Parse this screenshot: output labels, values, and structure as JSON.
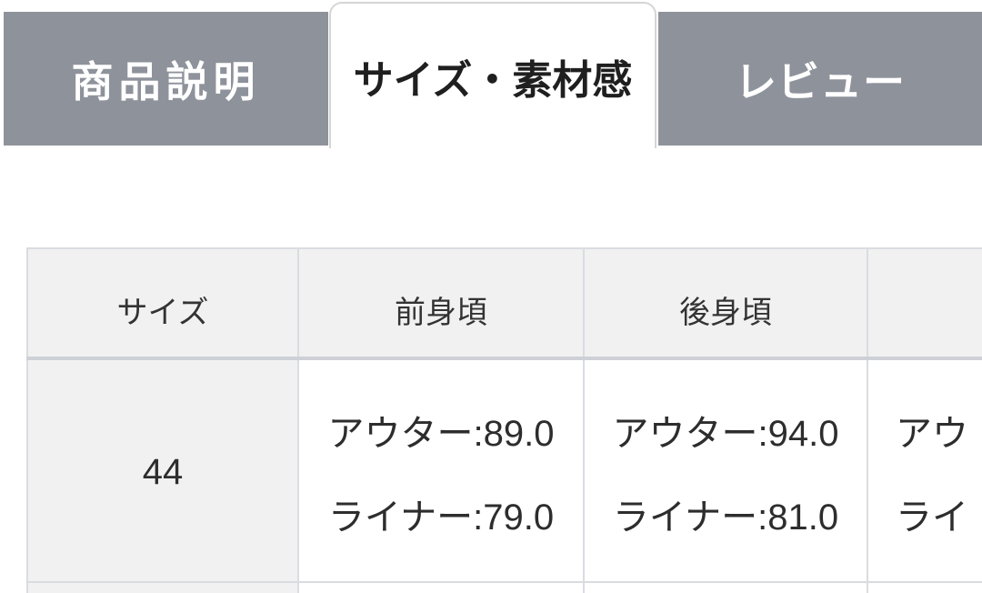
{
  "tabs": [
    {
      "label": "商品説明",
      "active": false
    },
    {
      "label": "サイズ・素材感",
      "active": true
    },
    {
      "label": "レビュー",
      "active": false
    }
  ],
  "size_table": {
    "headers": {
      "size": "サイズ",
      "front": "前身頃",
      "back": "後身頃",
      "clipped": ""
    },
    "rows": [
      {
        "size": "44",
        "front": {
          "line1": "アウター:89.0",
          "line2": "ライナー:79.0"
        },
        "back": {
          "line1": "アウター:94.0",
          "line2": "ライナー:81.0"
        },
        "clipped": {
          "line1": "アウ",
          "line2": "ライ"
        }
      }
    ]
  },
  "colors": {
    "tab_gray": "#8e929b",
    "tab_text": "#ffffff",
    "active_tab_text": "#1f1f1f",
    "tab_border": "#d5d5d5",
    "cell_bg": "#f1f1f2",
    "border": "#d9dce0",
    "border_heavy": "#cdd1d7",
    "body_text": "#2d2d2d",
    "header_text": "#333333"
  }
}
